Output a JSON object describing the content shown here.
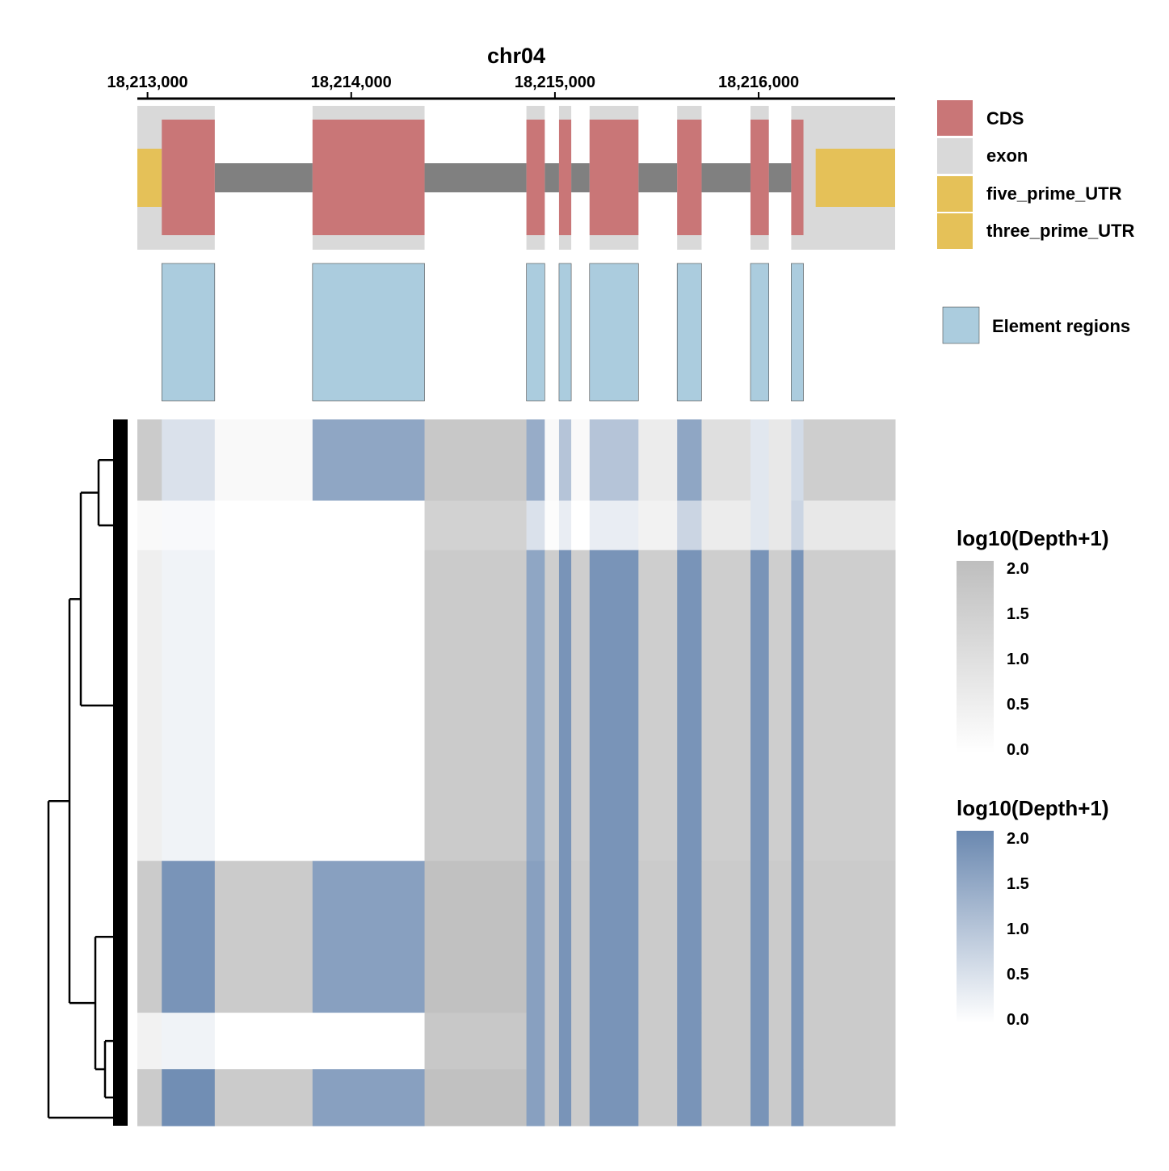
{
  "chart_data": {
    "type": "heatmap",
    "title": "chr04",
    "x_axis": {
      "range": [
        18212950,
        18216670
      ],
      "ticks": [
        18213000,
        18214000,
        18215000,
        18216000
      ],
      "tick_labels": [
        "18,213,000",
        "18,214,000",
        "18,215,000",
        "18,216,000"
      ]
    },
    "gene_model": {
      "intron_span": [
        18213110,
        18216280
      ],
      "features": [
        {
          "type": "five_prime_UTR",
          "start": 18212950,
          "end": 18213070
        },
        {
          "type": "three_prime_UTR",
          "start": 18216280,
          "end": 18216670
        },
        {
          "type": "exon",
          "start": 18212950,
          "end": 18213330
        },
        {
          "type": "exon",
          "start": 18213810,
          "end": 18214360
        },
        {
          "type": "exon",
          "start": 18214860,
          "end": 18214950
        },
        {
          "type": "exon",
          "start": 18215020,
          "end": 18215080
        },
        {
          "type": "exon",
          "start": 18215170,
          "end": 18215410
        },
        {
          "type": "exon",
          "start": 18215600,
          "end": 18215720
        },
        {
          "type": "exon",
          "start": 18215960,
          "end": 18216050
        },
        {
          "type": "exon",
          "start": 18216160,
          "end": 18216670
        },
        {
          "type": "CDS",
          "start": 18213070,
          "end": 18213330
        },
        {
          "type": "CDS",
          "start": 18213810,
          "end": 18214360
        },
        {
          "type": "CDS",
          "start": 18214860,
          "end": 18214950
        },
        {
          "type": "CDS",
          "start": 18215020,
          "end": 18215080
        },
        {
          "type": "CDS",
          "start": 18215170,
          "end": 18215410
        },
        {
          "type": "CDS",
          "start": 18215600,
          "end": 18215720
        },
        {
          "type": "CDS",
          "start": 18215960,
          "end": 18216050
        },
        {
          "type": "CDS",
          "start": 18216160,
          "end": 18216220
        }
      ]
    },
    "element_regions": [
      [
        18213070,
        18213330
      ],
      [
        18213810,
        18214360
      ],
      [
        18214860,
        18214950
      ],
      [
        18215020,
        18215080
      ],
      [
        18215170,
        18215410
      ],
      [
        18215600,
        18215720
      ],
      [
        18215960,
        18216050
      ],
      [
        18216160,
        18216220
      ]
    ],
    "feature_legend": [
      {
        "label": "CDS",
        "color": "#C97677"
      },
      {
        "label": "exon",
        "color": "#D9D9D9"
      },
      {
        "label": "five_prime_UTR",
        "color": "#E5C158"
      },
      {
        "label": "three_prime_UTR",
        "color": "#E5C158"
      }
    ],
    "element_legend": {
      "label": "Element regions",
      "color": "#ABCCDE"
    },
    "intron_color": "#808080",
    "heatmap": {
      "value": "log10(Depth+1)",
      "range": [
        0.0,
        2.0
      ],
      "outside_color_high": "#BEBEBE",
      "inside_color_high": "#6A88B0",
      "row_clusters": [
        {
          "fraction": 0.115,
          "level": [
            1.6,
            0.5,
            0.2,
            1.5,
            1.7,
            1.4,
            0.2,
            1.0,
            0.2,
            1.0,
            0.6,
            1.5,
            1.0,
            0.4,
            0.7,
            0.6,
            1.5,
            1.0,
            0.5
          ]
        },
        {
          "fraction": 0.07,
          "level": [
            0.2,
            0.1,
            0.0,
            0.0,
            1.4,
            0.5,
            0.1,
            0.3,
            0.0,
            0.3,
            0.4,
            0.7,
            0.6,
            0.4,
            0.7,
            0.7,
            0.7,
            0.7,
            0.7
          ]
        },
        {
          "fraction": 0.44,
          "level": [
            0.5,
            0.2,
            0.0,
            0.0,
            1.6,
            1.5,
            1.5,
            1.8,
            1.5,
            1.8,
            1.5,
            1.8,
            1.5,
            1.8,
            1.5,
            1.8,
            1.5,
            1.8,
            1.4
          ]
        },
        {
          "fraction": 0.215,
          "level": [
            1.6,
            1.8,
            1.6,
            1.6,
            1.9,
            1.6,
            1.6,
            1.8,
            1.6,
            1.8,
            1.6,
            1.8,
            1.6,
            1.8,
            1.6,
            1.8,
            1.6,
            1.8,
            1.6
          ]
        },
        {
          "fraction": 0.08,
          "level": [
            0.4,
            0.2,
            0.0,
            0.0,
            1.7,
            1.6,
            1.6,
            1.8,
            1.6,
            1.8,
            1.6,
            1.8,
            1.6,
            1.8,
            1.6,
            1.8,
            1.6,
            1.8,
            1.6
          ]
        },
        {
          "fraction": 0.08,
          "level": [
            1.6,
            1.9,
            1.6,
            1.6,
            1.9,
            1.6,
            1.6,
            1.8,
            1.6,
            1.8,
            1.6,
            1.8,
            1.6,
            1.8,
            1.6,
            1.8,
            1.6,
            1.8,
            1.6
          ]
        }
      ]
    },
    "colorbars": [
      {
        "title": "log10(Depth+1)",
        "ticks": [
          "2.0",
          "1.5",
          "1.0",
          "0.5",
          "0.0"
        ],
        "color_high": "#BEBEBE"
      },
      {
        "title": "log10(Depth+1)",
        "ticks": [
          "2.0",
          "1.5",
          "1.0",
          "0.5",
          "0.0"
        ],
        "color_high": "#6A88B0"
      }
    ]
  }
}
